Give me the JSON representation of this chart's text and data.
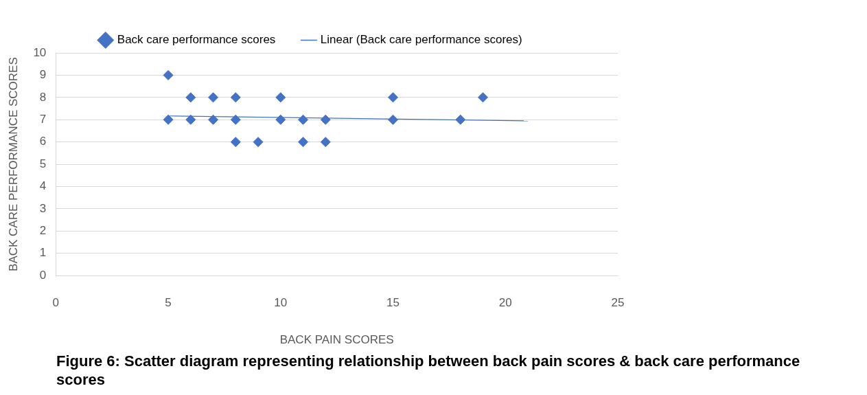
{
  "chart_data": {
    "type": "scatter",
    "xlabel": "BACK PAIN SCORES",
    "ylabel": "BACK CARE PERFORMANCE SCORES",
    "series": [
      {
        "name": "Back care performance scores",
        "type": "scatter",
        "color": "#4472c4",
        "marker": "diamond",
        "x": [
          5,
          5,
          6,
          6,
          7,
          7,
          8,
          8,
          8,
          9,
          10,
          10,
          11,
          11,
          12,
          12,
          15,
          15,
          18,
          19
        ],
        "values": [
          9,
          7,
          8,
          7,
          8,
          7,
          8,
          7,
          6,
          6,
          8,
          7,
          7,
          6,
          7,
          6,
          8,
          7,
          7,
          8
        ]
      },
      {
        "name": "Linear (Back care performance scores)",
        "type": "line",
        "color": "#4472c4",
        "marker": "none",
        "line_style": "solid",
        "x": [
          5,
          21
        ],
        "values": [
          7.17,
          6.95
        ]
      }
    ],
    "xlim": [
      0,
      25
    ],
    "xticks": [
      0,
      5,
      10,
      15,
      20,
      25
    ],
    "ylim": [
      0,
      10
    ],
    "yticks": [
      0,
      1,
      2,
      3,
      4,
      5,
      6,
      7,
      8,
      9,
      10
    ],
    "grid": "y",
    "legend": "top",
    "annotations": [
      "Figure 6: Scatter diagram representing relationship between back pain scores & back care performance scores"
    ]
  }
}
